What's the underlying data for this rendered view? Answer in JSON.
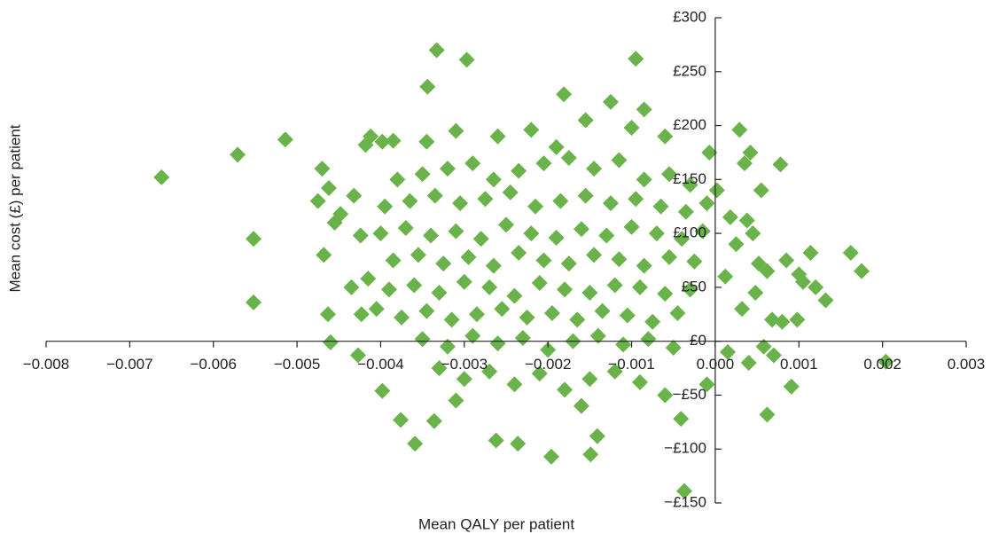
{
  "chart_data": {
    "type": "scatter",
    "x_label": "Mean QALY per patient",
    "y_label": "Mean cost (£) per patient",
    "color": "#6ab34a",
    "xlim": [
      -0.008,
      0.003
    ],
    "ylim": [
      -150,
      300
    ],
    "xticks": [
      {
        "value": -0.008,
        "label": "−0.008"
      },
      {
        "value": -0.007,
        "label": "−0.007"
      },
      {
        "value": -0.006,
        "label": "−0.006"
      },
      {
        "value": -0.005,
        "label": "−0.005"
      },
      {
        "value": -0.004,
        "label": "−0.004"
      },
      {
        "value": -0.003,
        "label": "−0.003"
      },
      {
        "value": -0.002,
        "label": "−0.002"
      },
      {
        "value": -0.001,
        "label": "−0.001"
      },
      {
        "value": 0,
        "label": "0.000"
      },
      0.001,
      0.002,
      0.003
    ],
    "yticks": [
      {
        "value": -150,
        "label": "−£150"
      },
      {
        "value": -100,
        "label": "−£100"
      },
      {
        "value": -50,
        "label": "−£50"
      },
      {
        "value": 0,
        "label": "£0"
      },
      {
        "value": 50,
        "label": "£50"
      },
      {
        "value": 100,
        "label": "£100"
      },
      {
        "value": 150,
        "label": "£150"
      },
      {
        "value": 200,
        "label": "£200"
      },
      {
        "value": 250,
        "label": "£250"
      },
      {
        "value": 300,
        "label": "£300"
      }
    ],
    "x": [
      -0.00662,
      -0.00571,
      -0.00514,
      -0.00552,
      -0.00552,
      -0.00333,
      -0.00297,
      -0.00095,
      -0.00344,
      -0.00181,
      0.00204,
      0.00162,
      0.00175,
      0.00132,
      0.00114,
      0.00078,
      0.00029,
      -7e-05,
      -0.00037,
      -0.00196,
      -0.00236,
      -0.00359,
      -0.00149,
      -0.00141,
      0.00062,
      0.00091,
      -0.00376,
      -0.00336,
      -0.00398,
      -0.00427,
      -0.0046,
      -0.00463,
      -0.00423,
      -0.00262,
      -0.00041,
      -0.00475,
      -0.00462,
      -0.00448,
      -0.00468,
      -0.00455,
      -0.00432,
      -0.00418,
      -0.00412,
      -0.00398,
      -0.00385,
      -0.00424,
      -0.00435,
      -0.00415,
      -0.00405,
      -0.0047,
      0.00045,
      0.00055,
      0.00038,
      0.00025,
      0.00012,
      0.00032,
      0.00048,
      0.00068,
      0.00085,
      0.001,
      0.00105,
      0.0012,
      0.0008,
      0.00098,
      0.00058,
      0.0004,
      0.00015,
      -0.0001,
      0.0007,
      0.00052,
      0.00035,
      0.00042,
      0.00018,
      2e-05,
      0.00062,
      -0.0031,
      -0.0022,
      -0.00155,
      -0.00125,
      -0.00085,
      -0.001,
      -0.00345,
      -0.0026,
      -0.0019,
      -0.0006,
      -0.0038,
      -0.0035,
      -0.0032,
      -0.0029,
      -0.00265,
      -0.00235,
      -0.00205,
      -0.00175,
      -0.00145,
      -0.00115,
      -0.00085,
      -0.00055,
      -0.0003,
      -0.00395,
      -0.00365,
      -0.00335,
      -0.00305,
      -0.00275,
      -0.00245,
      -0.00215,
      -0.00185,
      -0.00155,
      -0.00125,
      -0.00095,
      -0.00065,
      -0.00035,
      -0.0001,
      -0.004,
      -0.0037,
      -0.0034,
      -0.0031,
      -0.0028,
      -0.0025,
      -0.0022,
      -0.0019,
      -0.0016,
      -0.0013,
      -0.001,
      -0.0007,
      -0.0004,
      -0.00015,
      -0.00385,
      -0.00355,
      -0.00325,
      -0.00295,
      -0.00265,
      -0.00235,
      -0.00205,
      -0.00175,
      -0.00145,
      -0.00115,
      -0.00085,
      -0.00055,
      -0.00025,
      -0.0039,
      -0.0036,
      -0.0033,
      -0.003,
      -0.0027,
      -0.0024,
      -0.0021,
      -0.0018,
      -0.0015,
      -0.0012,
      -0.0009,
      -0.0006,
      -0.0003,
      -0.00375,
      -0.00345,
      -0.00315,
      -0.00285,
      -0.00255,
      -0.00225,
      -0.00195,
      -0.00165,
      -0.00135,
      -0.00105,
      -0.00075,
      -0.00045,
      -0.0035,
      -0.0032,
      -0.0029,
      -0.0026,
      -0.0023,
      -0.002,
      -0.0017,
      -0.0014,
      -0.0011,
      -0.0008,
      -0.0005,
      -0.0033,
      -0.003,
      -0.0027,
      -0.0024,
      -0.0021,
      -0.0018,
      -0.0015,
      -0.0012,
      -0.0009,
      -0.0006,
      -0.0031,
      -0.0016
    ],
    "values": [
      152,
      173,
      187,
      95,
      36,
      270,
      261,
      262,
      236,
      229,
      -19,
      82,
      65,
      38,
      82,
      164,
      196,
      175,
      -139,
      -107,
      -95,
      -95,
      -105,
      -88,
      -68,
      -42,
      -73,
      -74,
      -46,
      -13,
      -1,
      25,
      25,
      -92,
      -72,
      130,
      142,
      118,
      80,
      110,
      135,
      182,
      190,
      185,
      186,
      98,
      50,
      58,
      30,
      160,
      100,
      140,
      112,
      90,
      60,
      30,
      45,
      20,
      75,
      62,
      55,
      50,
      18,
      20,
      -5,
      -20,
      -10,
      -40,
      -13,
      72,
      165,
      175,
      115,
      140,
      65,
      195,
      196,
      205,
      222,
      215,
      198,
      185,
      190,
      180,
      190,
      150,
      155,
      160,
      165,
      150,
      158,
      165,
      170,
      160,
      168,
      150,
      155,
      145,
      125,
      130,
      135,
      128,
      132,
      138,
      125,
      130,
      135,
      128,
      132,
      125,
      120,
      128,
      100,
      105,
      98,
      102,
      95,
      108,
      100,
      96,
      104,
      98,
      106,
      100,
      95,
      102,
      75,
      80,
      72,
      78,
      70,
      82,
      75,
      72,
      80,
      76,
      70,
      78,
      74,
      48,
      52,
      45,
      55,
      50,
      42,
      54,
      48,
      45,
      52,
      50,
      44,
      48,
      22,
      28,
      20,
      25,
      30,
      22,
      26,
      20,
      28,
      24,
      18,
      26,
      2,
      -5,
      5,
      -2,
      3,
      -8,
      0,
      5,
      -3,
      2,
      -6,
      -25,
      -35,
      -28,
      -40,
      -30,
      -45,
      -35,
      -28,
      -38,
      -50,
      -55,
      -60
    ]
  }
}
